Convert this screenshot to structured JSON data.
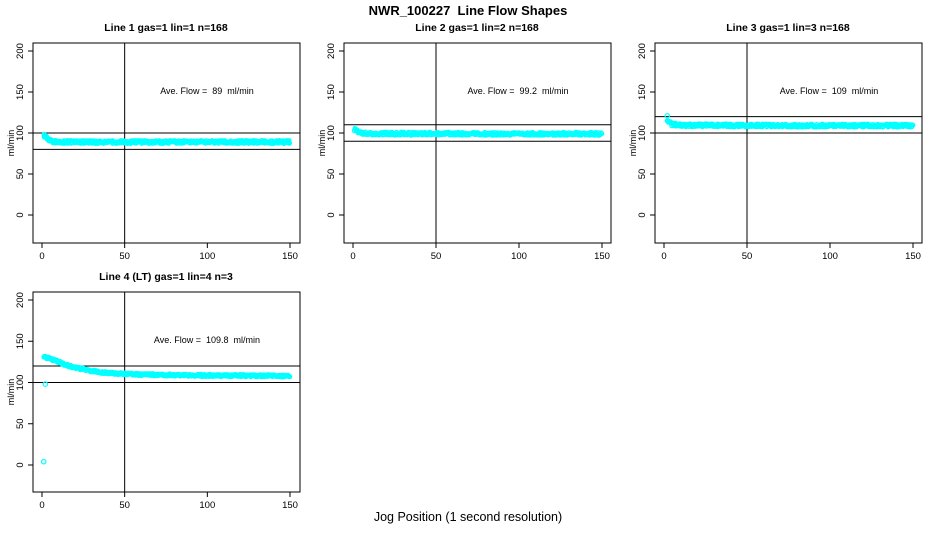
{
  "figure": {
    "background": "#FFFFFF",
    "axis_color": "#000000",
    "point_color": "#00FFFF"
  },
  "chart_data": {
    "type": "scatter",
    "title": "NWR_100227  Line Flow Shapes",
    "xlabel": "Jog Position (1 second resolution)",
    "ylabel": "ml/min",
    "xlim": [
      0,
      150
    ],
    "ylim": [
      0,
      200
    ],
    "x_ticks": [
      0,
      50,
      100,
      150
    ],
    "y_ticks": [
      0,
      50,
      100,
      150,
      200
    ],
    "grid": false,
    "marker": "open-circle",
    "marker_color": "#00FFFF",
    "panels": [
      {
        "title": "Line 1 gas=1 lin=1 n=168",
        "annotation": "Ave. Flow =  89  ml/min",
        "ave_flow_ml_min": 89,
        "n_jogs": 168,
        "ylabel": "ml/min",
        "vline_x": 50,
        "hlines": [
          100,
          80
        ],
        "profile": [
          [
            1,
            97.5
          ],
          [
            2,
            96
          ],
          [
            3,
            94
          ],
          [
            4,
            92
          ],
          [
            5,
            91
          ],
          [
            6,
            90
          ],
          [
            8,
            89.5
          ],
          [
            10,
            89
          ],
          [
            75,
            89
          ],
          [
            150,
            89
          ]
        ],
        "noise": 1.8,
        "outliers": []
      },
      {
        "title": "Line 2 gas=1 lin=2 n=168",
        "annotation": "Ave. Flow =  99.2  ml/min",
        "ave_flow_ml_min": 99.2,
        "n_jogs": 168,
        "ylabel": "ml/min",
        "vline_x": 50,
        "hlines": [
          110,
          90
        ],
        "profile": [
          [
            1,
            104
          ],
          [
            2,
            103
          ],
          [
            3,
            102
          ],
          [
            4,
            101
          ],
          [
            5,
            100.5
          ],
          [
            6,
            100
          ],
          [
            8,
            99.5
          ],
          [
            10,
            99.2
          ],
          [
            75,
            99
          ],
          [
            150,
            99
          ]
        ],
        "noise": 1.8,
        "outliers": []
      },
      {
        "title": "Line 3 gas=1 lin=3 n=168",
        "annotation": "Ave. Flow =  109  ml/min",
        "ave_flow_ml_min": 109,
        "n_jogs": 168,
        "ylabel": "ml/min",
        "vline_x": 50,
        "hlines": [
          120,
          100
        ],
        "profile": [
          [
            2,
            115
          ],
          [
            3,
            113
          ],
          [
            4,
            111.5
          ],
          [
            5,
            110.5
          ],
          [
            7,
            110
          ],
          [
            10,
            109.5
          ],
          [
            75,
            109
          ],
          [
            150,
            109
          ]
        ],
        "noise": 1.8,
        "outliers": [
          [
            2,
            121
          ]
        ]
      },
      {
        "title": "Line 4 (LT) gas=1 lin=4 n=3",
        "annotation": "Ave. Flow =  109.8  ml/min",
        "ave_flow_ml_min": 109.8,
        "n_jogs": 3,
        "ylabel": "ml/min",
        "vline_x": 50,
        "hlines": [
          120,
          100
        ],
        "profile": [
          [
            1,
            131
          ],
          [
            5,
            129
          ],
          [
            10,
            125
          ],
          [
            15,
            121
          ],
          [
            20,
            118
          ],
          [
            25,
            116
          ],
          [
            30,
            114
          ],
          [
            40,
            111.5
          ],
          [
            50,
            110.5
          ],
          [
            60,
            109.5
          ],
          [
            80,
            109
          ],
          [
            100,
            108.5
          ],
          [
            150,
            108
          ]
        ],
        "noise": 1.4,
        "outliers": [
          [
            2,
            98
          ],
          [
            1,
            4
          ]
        ]
      }
    ]
  }
}
